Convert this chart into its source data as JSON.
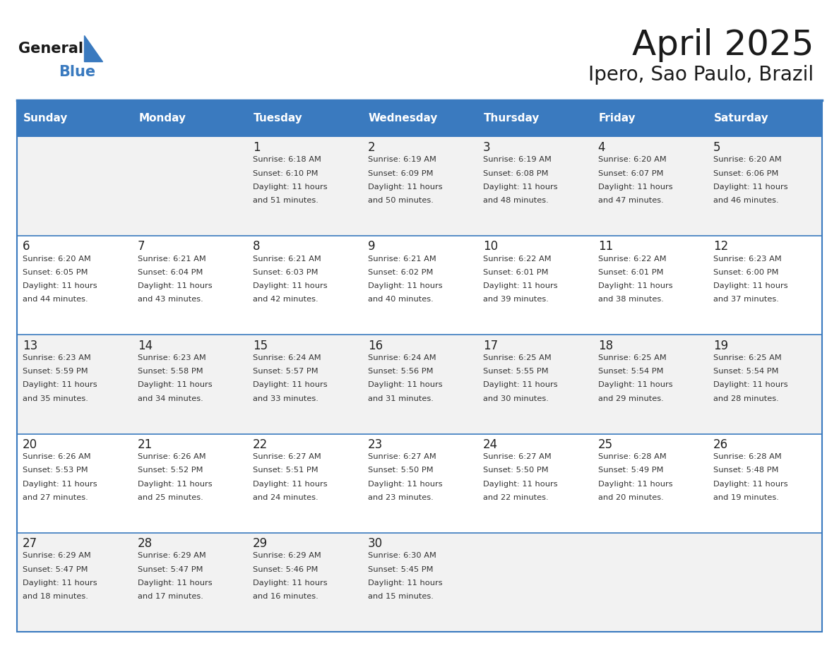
{
  "title": "April 2025",
  "subtitle": "Ipero, Sao Paulo, Brazil",
  "header_bg": "#3a7abf",
  "header_text_color": "#ffffff",
  "row_bg_odd": "#f2f2f2",
  "row_bg_even": "#ffffff",
  "separator_color": "#3a7abf",
  "text_color": "#333333",
  "days_of_week": [
    "Sunday",
    "Monday",
    "Tuesday",
    "Wednesday",
    "Thursday",
    "Friday",
    "Saturday"
  ],
  "calendar_data": [
    [
      {
        "day": "",
        "sunrise": "",
        "sunset": "",
        "daylight": ""
      },
      {
        "day": "",
        "sunrise": "",
        "sunset": "",
        "daylight": ""
      },
      {
        "day": "1",
        "sunrise": "Sunrise: 6:18 AM",
        "sunset": "Sunset: 6:10 PM",
        "daylight": "Daylight: 11 hours\nand 51 minutes."
      },
      {
        "day": "2",
        "sunrise": "Sunrise: 6:19 AM",
        "sunset": "Sunset: 6:09 PM",
        "daylight": "Daylight: 11 hours\nand 50 minutes."
      },
      {
        "day": "3",
        "sunrise": "Sunrise: 6:19 AM",
        "sunset": "Sunset: 6:08 PM",
        "daylight": "Daylight: 11 hours\nand 48 minutes."
      },
      {
        "day": "4",
        "sunrise": "Sunrise: 6:20 AM",
        "sunset": "Sunset: 6:07 PM",
        "daylight": "Daylight: 11 hours\nand 47 minutes."
      },
      {
        "day": "5",
        "sunrise": "Sunrise: 6:20 AM",
        "sunset": "Sunset: 6:06 PM",
        "daylight": "Daylight: 11 hours\nand 46 minutes."
      }
    ],
    [
      {
        "day": "6",
        "sunrise": "Sunrise: 6:20 AM",
        "sunset": "Sunset: 6:05 PM",
        "daylight": "Daylight: 11 hours\nand 44 minutes."
      },
      {
        "day": "7",
        "sunrise": "Sunrise: 6:21 AM",
        "sunset": "Sunset: 6:04 PM",
        "daylight": "Daylight: 11 hours\nand 43 minutes."
      },
      {
        "day": "8",
        "sunrise": "Sunrise: 6:21 AM",
        "sunset": "Sunset: 6:03 PM",
        "daylight": "Daylight: 11 hours\nand 42 minutes."
      },
      {
        "day": "9",
        "sunrise": "Sunrise: 6:21 AM",
        "sunset": "Sunset: 6:02 PM",
        "daylight": "Daylight: 11 hours\nand 40 minutes."
      },
      {
        "day": "10",
        "sunrise": "Sunrise: 6:22 AM",
        "sunset": "Sunset: 6:01 PM",
        "daylight": "Daylight: 11 hours\nand 39 minutes."
      },
      {
        "day": "11",
        "sunrise": "Sunrise: 6:22 AM",
        "sunset": "Sunset: 6:01 PM",
        "daylight": "Daylight: 11 hours\nand 38 minutes."
      },
      {
        "day": "12",
        "sunrise": "Sunrise: 6:23 AM",
        "sunset": "Sunset: 6:00 PM",
        "daylight": "Daylight: 11 hours\nand 37 minutes."
      }
    ],
    [
      {
        "day": "13",
        "sunrise": "Sunrise: 6:23 AM",
        "sunset": "Sunset: 5:59 PM",
        "daylight": "Daylight: 11 hours\nand 35 minutes."
      },
      {
        "day": "14",
        "sunrise": "Sunrise: 6:23 AM",
        "sunset": "Sunset: 5:58 PM",
        "daylight": "Daylight: 11 hours\nand 34 minutes."
      },
      {
        "day": "15",
        "sunrise": "Sunrise: 6:24 AM",
        "sunset": "Sunset: 5:57 PM",
        "daylight": "Daylight: 11 hours\nand 33 minutes."
      },
      {
        "day": "16",
        "sunrise": "Sunrise: 6:24 AM",
        "sunset": "Sunset: 5:56 PM",
        "daylight": "Daylight: 11 hours\nand 31 minutes."
      },
      {
        "day": "17",
        "sunrise": "Sunrise: 6:25 AM",
        "sunset": "Sunset: 5:55 PM",
        "daylight": "Daylight: 11 hours\nand 30 minutes."
      },
      {
        "day": "18",
        "sunrise": "Sunrise: 6:25 AM",
        "sunset": "Sunset: 5:54 PM",
        "daylight": "Daylight: 11 hours\nand 29 minutes."
      },
      {
        "day": "19",
        "sunrise": "Sunrise: 6:25 AM",
        "sunset": "Sunset: 5:54 PM",
        "daylight": "Daylight: 11 hours\nand 28 minutes."
      }
    ],
    [
      {
        "day": "20",
        "sunrise": "Sunrise: 6:26 AM",
        "sunset": "Sunset: 5:53 PM",
        "daylight": "Daylight: 11 hours\nand 27 minutes."
      },
      {
        "day": "21",
        "sunrise": "Sunrise: 6:26 AM",
        "sunset": "Sunset: 5:52 PM",
        "daylight": "Daylight: 11 hours\nand 25 minutes."
      },
      {
        "day": "22",
        "sunrise": "Sunrise: 6:27 AM",
        "sunset": "Sunset: 5:51 PM",
        "daylight": "Daylight: 11 hours\nand 24 minutes."
      },
      {
        "day": "23",
        "sunrise": "Sunrise: 6:27 AM",
        "sunset": "Sunset: 5:50 PM",
        "daylight": "Daylight: 11 hours\nand 23 minutes."
      },
      {
        "day": "24",
        "sunrise": "Sunrise: 6:27 AM",
        "sunset": "Sunset: 5:50 PM",
        "daylight": "Daylight: 11 hours\nand 22 minutes."
      },
      {
        "day": "25",
        "sunrise": "Sunrise: 6:28 AM",
        "sunset": "Sunset: 5:49 PM",
        "daylight": "Daylight: 11 hours\nand 20 minutes."
      },
      {
        "day": "26",
        "sunrise": "Sunrise: 6:28 AM",
        "sunset": "Sunset: 5:48 PM",
        "daylight": "Daylight: 11 hours\nand 19 minutes."
      }
    ],
    [
      {
        "day": "27",
        "sunrise": "Sunrise: 6:29 AM",
        "sunset": "Sunset: 5:47 PM",
        "daylight": "Daylight: 11 hours\nand 18 minutes."
      },
      {
        "day": "28",
        "sunrise": "Sunrise: 6:29 AM",
        "sunset": "Sunset: 5:47 PM",
        "daylight": "Daylight: 11 hours\nand 17 minutes."
      },
      {
        "day": "29",
        "sunrise": "Sunrise: 6:29 AM",
        "sunset": "Sunset: 5:46 PM",
        "daylight": "Daylight: 11 hours\nand 16 minutes."
      },
      {
        "day": "30",
        "sunrise": "Sunrise: 6:30 AM",
        "sunset": "Sunset: 5:45 PM",
        "daylight": "Daylight: 11 hours\nand 15 minutes."
      },
      {
        "day": "",
        "sunrise": "",
        "sunset": "",
        "daylight": ""
      },
      {
        "day": "",
        "sunrise": "",
        "sunset": "",
        "daylight": ""
      },
      {
        "day": "",
        "sunrise": "",
        "sunset": "",
        "daylight": ""
      }
    ]
  ]
}
